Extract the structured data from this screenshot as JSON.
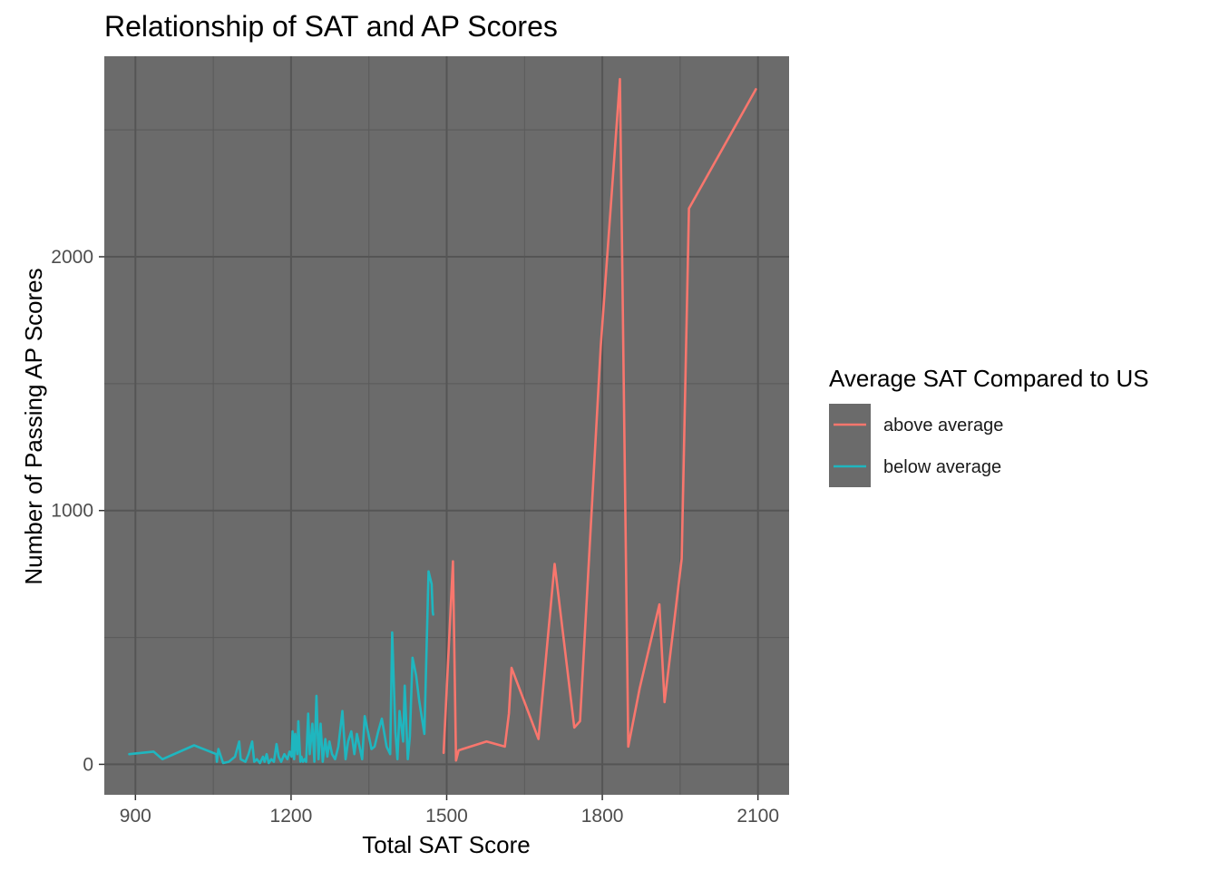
{
  "chart_data": {
    "type": "line",
    "title": "Relationship of SAT and AP Scores",
    "xlabel": "Total SAT Score",
    "ylabel": "Number of Passing AP Scores",
    "xlim": [
      840,
      2160
    ],
    "ylim": [
      -120,
      2790
    ],
    "x_ticks": [
      900,
      1200,
      1500,
      1800,
      2100
    ],
    "y_ticks": [
      0,
      1000,
      2000
    ],
    "grid": true,
    "panel_background": "#6b6b6b",
    "legend": {
      "title": "Average SAT Compared to US",
      "placement": "right",
      "key_background": "#6b6b6b"
    },
    "series": [
      {
        "name": "below average",
        "color": "#1fb6bf",
        "x": [
          888,
          935,
          952,
          1013,
          1056,
          1057,
          1060,
          1069,
          1080,
          1092,
          1100,
          1103,
          1112,
          1118,
          1125,
          1129,
          1134,
          1140,
          1146,
          1149,
          1153,
          1157,
          1162,
          1167,
          1172,
          1176,
          1181,
          1187,
          1193,
          1197,
          1201,
          1203,
          1206,
          1208,
          1212,
          1214,
          1218,
          1220,
          1223,
          1226,
          1229,
          1233,
          1236,
          1241,
          1245,
          1249,
          1253,
          1257,
          1261,
          1266,
          1270,
          1274,
          1279,
          1285,
          1291,
          1299,
          1305,
          1310,
          1316,
          1322,
          1327,
          1332,
          1337,
          1342,
          1347,
          1355,
          1361,
          1368,
          1375,
          1384,
          1391,
          1395,
          1401,
          1405,
          1409,
          1416,
          1419,
          1425,
          1429,
          1434,
          1441,
          1447,
          1457,
          1465,
          1471,
          1473,
          1474
        ],
        "y": [
          40,
          50,
          20,
          75,
          40,
          10,
          60,
          5,
          10,
          30,
          90,
          20,
          10,
          40,
          90,
          10,
          20,
          5,
          30,
          10,
          40,
          5,
          20,
          10,
          80,
          30,
          10,
          40,
          20,
          50,
          30,
          130,
          20,
          120,
          40,
          170,
          10,
          30,
          10,
          20,
          10,
          200,
          40,
          160,
          10,
          270,
          20,
          160,
          10,
          100,
          30,
          90,
          40,
          20,
          70,
          210,
          20,
          90,
          130,
          40,
          120,
          70,
          20,
          190,
          140,
          60,
          70,
          130,
          180,
          70,
          40,
          520,
          130,
          20,
          210,
          90,
          310,
          20,
          110,
          420,
          350,
          250,
          120,
          760,
          710,
          600,
          590
        ]
      },
      {
        "name": "above average",
        "color": "#f8766d",
        "x": [
          1494,
          1512,
          1518,
          1523,
          1577,
          1612,
          1620,
          1625,
          1677,
          1708,
          1746,
          1757,
          1797,
          1834,
          1850,
          1872,
          1910,
          1920,
          1953,
          1967,
          2096
        ],
        "y": [
          45,
          800,
          15,
          55,
          90,
          70,
          200,
          380,
          100,
          790,
          145,
          170,
          1650,
          2700,
          70,
          300,
          630,
          245,
          810,
          2190,
          2660
        ]
      }
    ]
  }
}
